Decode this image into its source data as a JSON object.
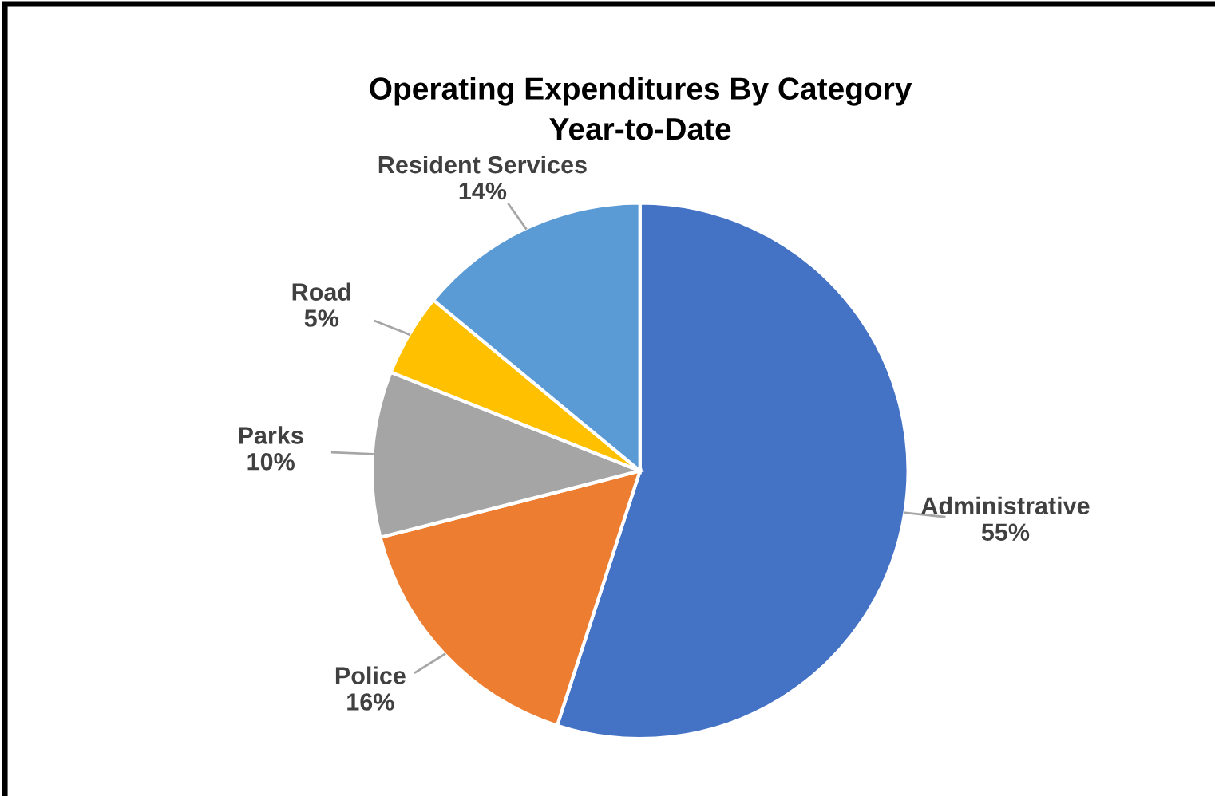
{
  "chart_data": {
    "type": "pie",
    "title": "Operating Expenditures By Category\nYear-to-Date",
    "categories": [
      "Administrative",
      "Police",
      "Parks",
      "Road",
      "Resident Services"
    ],
    "values": [
      55,
      16,
      10,
      5,
      14
    ],
    "value_labels": [
      "55%",
      "16%",
      "10%",
      "5%",
      "14%"
    ],
    "colors": [
      "#4472c4",
      "#ed7d31",
      "#a5a5a5",
      "#ffc000",
      "#5b9bd5"
    ],
    "legend": false
  }
}
